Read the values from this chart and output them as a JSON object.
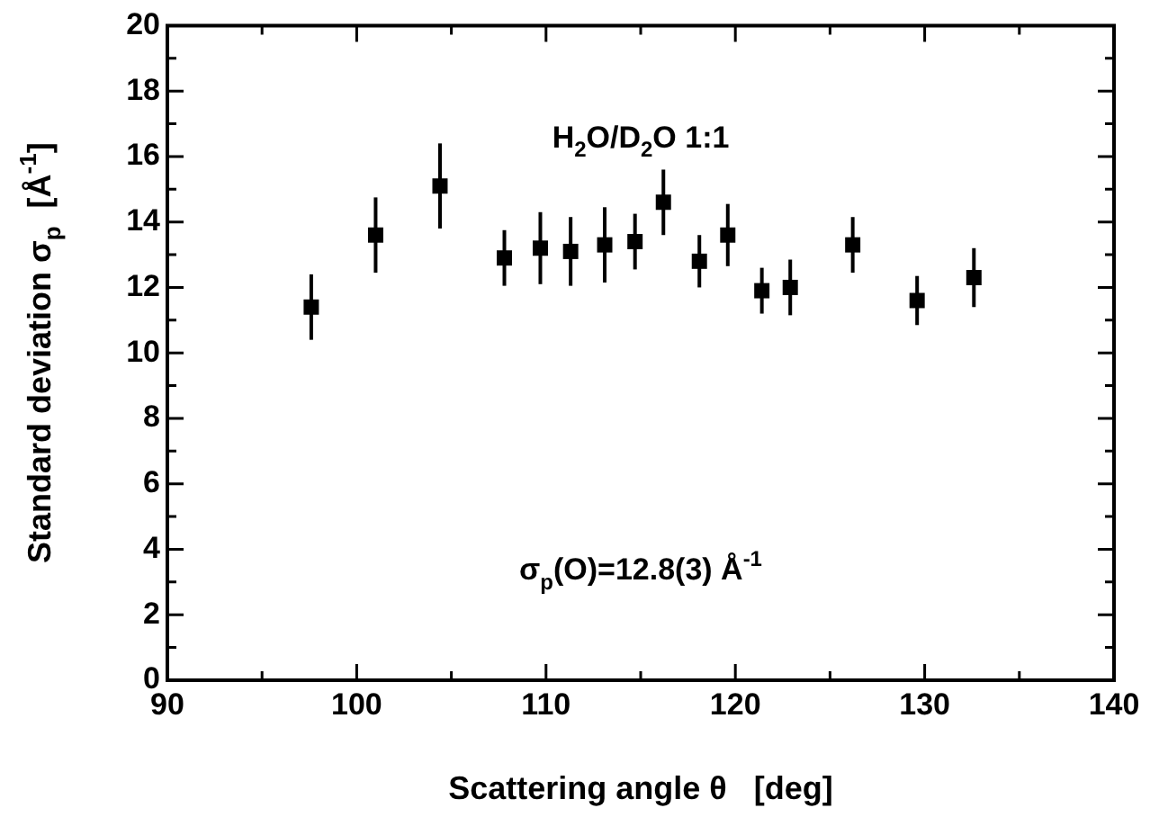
{
  "chart_data": {
    "type": "scatter",
    "xlabel": "Scattering angle θ   [deg]",
    "ylabel": "Standard deviation σ$_{p}$  [Å$^{-1}$]",
    "annotations": [
      "H$_{2}$O/D$_{2}$O 1:1",
      "σ$_{p}$(O)=12.8(3) Å$^{-1}$"
    ],
    "x": [
      97.6,
      101.0,
      104.4,
      107.8,
      109.7,
      111.3,
      113.1,
      114.7,
      116.2,
      118.1,
      119.6,
      121.4,
      122.9,
      126.2,
      129.6,
      132.6
    ],
    "series": [
      {
        "color": "#000000",
        "values": [
          11.4,
          13.6,
          15.1,
          12.9,
          13.2,
          13.1,
          13.3,
          13.4,
          14.6,
          12.8,
          13.6,
          11.9,
          12.0,
          13.3,
          11.6,
          12.3
        ],
        "errors": [
          1.0,
          1.15,
          1.3,
          0.85,
          1.1,
          1.05,
          1.15,
          0.85,
          1.0,
          0.8,
          0.95,
          0.7,
          0.85,
          0.85,
          0.75,
          0.9
        ]
      }
    ],
    "marker": "square",
    "legend": false,
    "grid": false,
    "xlim": [
      90,
      140
    ],
    "xticks": [
      90,
      {
        "value": 95,
        "label": null
      },
      100,
      {
        "value": 105,
        "label": null
      },
      110,
      {
        "value": 115,
        "label": null
      },
      120,
      {
        "value": 125,
        "label": null
      },
      130,
      {
        "value": 135,
        "label": null
      },
      140
    ],
    "ylim": [
      0,
      20
    ],
    "yticks": [
      0,
      {
        "value": 1,
        "label": null
      },
      2,
      {
        "value": 3,
        "label": null
      },
      4,
      {
        "value": 5,
        "label": null
      },
      6,
      {
        "value": 7,
        "label": null
      },
      8,
      {
        "value": 9,
        "label": null
      },
      10,
      {
        "value": 11,
        "label": null
      },
      12,
      {
        "value": 13,
        "label": null
      },
      14,
      {
        "value": 15,
        "label": null
      },
      16,
      {
        "value": 17,
        "label": null
      },
      18,
      {
        "value": 19,
        "label": null
      },
      20
    ]
  }
}
